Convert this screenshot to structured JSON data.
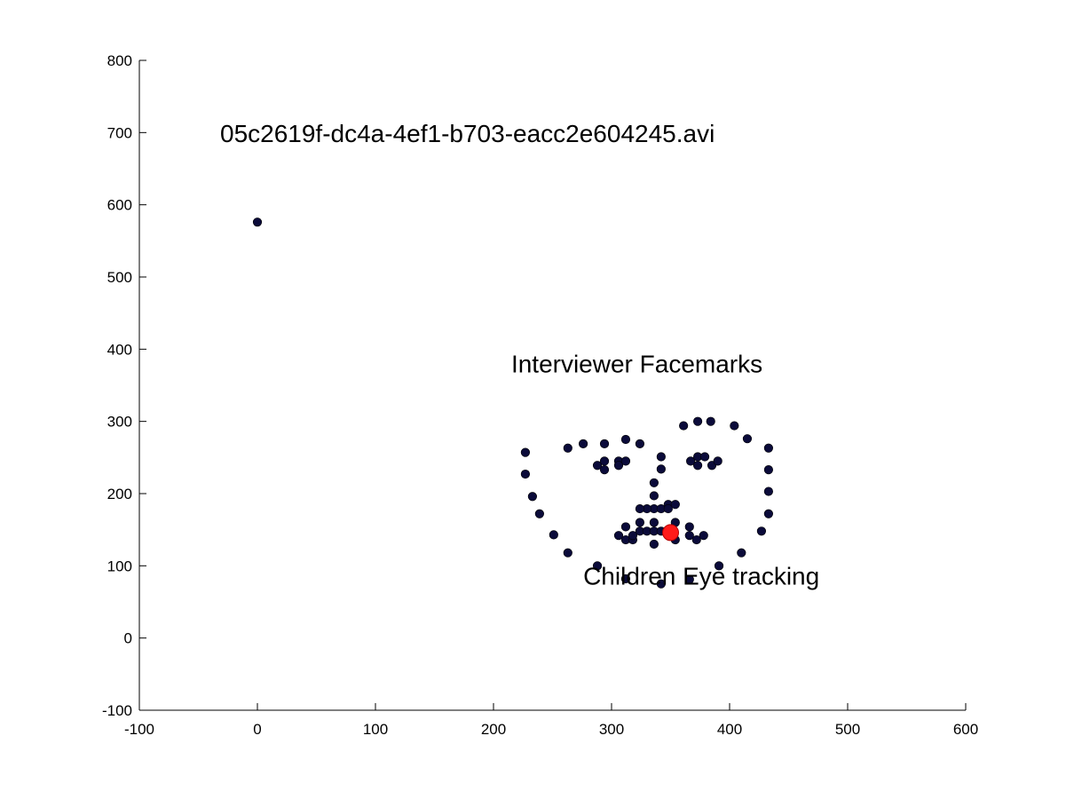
{
  "chart_data": {
    "type": "scatter",
    "title": "05c2619f-dc4a-4ef1-b703-eacc2e604245.avi",
    "xlabel": "",
    "ylabel": "",
    "xlim": [
      -100,
      600
    ],
    "ylim": [
      -100,
      800
    ],
    "xticks": [
      "-100",
      "0",
      "100",
      "200",
      "300",
      "400",
      "500",
      "600"
    ],
    "yticks": [
      "-100",
      "0",
      "100",
      "200",
      "300",
      "400",
      "500",
      "600",
      "700",
      "800"
    ],
    "grid": false,
    "annotations": [
      {
        "text": "Interviewer Facemarks",
        "x": 215,
        "y": 380
      },
      {
        "text": "Children Eye tracking",
        "x": 276,
        "y": 86
      }
    ],
    "colors": {
      "facemark": "#0b0b3a",
      "gaze": "#ff1a1a"
    },
    "series": [
      {
        "role": "facemarks",
        "points": [
          [
            0,
            576
          ],
          [
            227,
            257
          ],
          [
            227,
            227
          ],
          [
            233,
            196
          ],
          [
            239,
            172
          ],
          [
            251,
            143
          ],
          [
            263,
            118
          ],
          [
            288,
            100
          ],
          [
            312,
            82
          ],
          [
            342,
            75
          ],
          [
            366,
            81
          ],
          [
            391,
            100
          ],
          [
            410,
            118
          ],
          [
            427,
            148
          ],
          [
            433,
            172
          ],
          [
            433,
            203
          ],
          [
            433,
            233
          ],
          [
            433,
            263
          ],
          [
            263,
            263
          ],
          [
            276,
            269
          ],
          [
            294,
            269
          ],
          [
            312,
            275
          ],
          [
            324,
            269
          ],
          [
            361,
            294
          ],
          [
            373,
            300
          ],
          [
            384,
            300
          ],
          [
            404,
            294
          ],
          [
            415,
            276
          ],
          [
            342,
            251
          ],
          [
            342,
            234
          ],
          [
            336,
            215
          ],
          [
            336,
            197
          ],
          [
            336,
            179
          ],
          [
            330,
            179
          ],
          [
            324,
            179
          ],
          [
            342,
            179
          ],
          [
            348,
            185
          ],
          [
            288,
            239
          ],
          [
            294,
            245
          ],
          [
            294,
            233
          ],
          [
            306,
            245
          ],
          [
            306,
            239
          ],
          [
            312,
            245
          ],
          [
            367,
            245
          ],
          [
            373,
            251
          ],
          [
            379,
            251
          ],
          [
            373,
            239
          ],
          [
            385,
            239
          ],
          [
            390,
            245
          ],
          [
            312,
            154
          ],
          [
            324,
            160
          ],
          [
            336,
            160
          ],
          [
            348,
            179
          ],
          [
            354,
            185
          ],
          [
            354,
            160
          ],
          [
            366,
            154
          ],
          [
            306,
            142
          ],
          [
            312,
            136
          ],
          [
            318,
            136
          ],
          [
            318,
            142
          ],
          [
            324,
            148
          ],
          [
            330,
            148
          ],
          [
            336,
            148
          ],
          [
            336,
            130
          ],
          [
            342,
            148
          ],
          [
            354,
            136
          ],
          [
            366,
            142
          ],
          [
            372,
            136
          ],
          [
            378,
            142
          ]
        ]
      },
      {
        "role": "eye-tracking",
        "points": [
          [
            350,
            146
          ]
        ]
      }
    ]
  }
}
